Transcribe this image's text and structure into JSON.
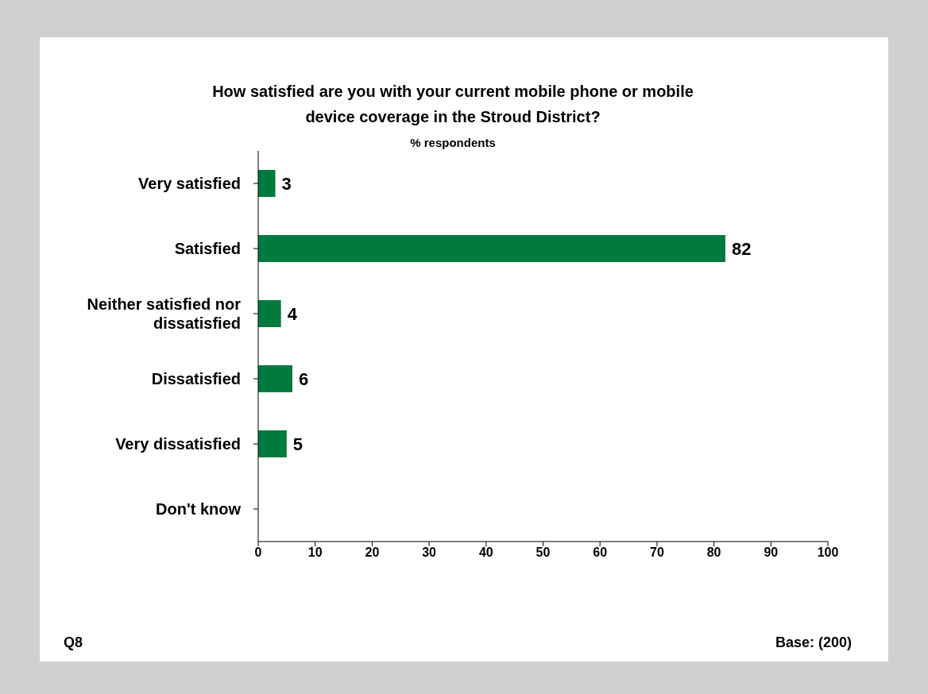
{
  "chart_data": {
    "type": "bar",
    "orientation": "horizontal",
    "title": "How satisfied are you with your current mobile phone or mobile device coverage in the Stroud District?",
    "subtitle": "% respondents",
    "categories": [
      "Very satisfied",
      "Satisfied",
      "Neither satisfied nor dissatisfied",
      "Dissatisfied",
      "Very dissatisfied",
      "Don't know"
    ],
    "values": [
      3,
      82,
      4,
      6,
      5,
      null
    ],
    "color": "#007a3d",
    "xlim": [
      0,
      100
    ],
    "xticks": [
      0,
      10,
      20,
      30,
      40,
      50,
      60,
      70,
      80,
      90,
      100
    ],
    "grid": false,
    "data_labels": true,
    "annotations": [
      "Q8",
      "Base: (200)"
    ]
  }
}
